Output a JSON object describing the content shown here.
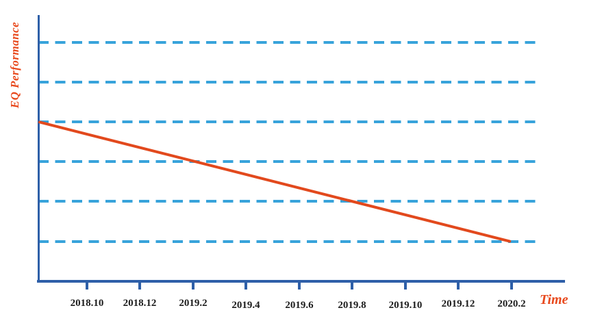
{
  "chart_data": {
    "type": "line",
    "title": "",
    "xlabel": "Time",
    "ylabel": "EQ Performance",
    "categories": [
      "2018.10",
      "2018.12",
      "2019.2",
      "2019.4",
      "2019.6",
      "2019.8",
      "2019.10",
      "2019.12",
      "2020.2"
    ],
    "y_axis": {
      "numeric_labels_visible": false,
      "gridline_count": 6,
      "gridline_style": "dashed",
      "gridline_orientation": "horizontal"
    },
    "legend": "none",
    "series": [
      {
        "name": "EQ Performance",
        "shape": "single straight declining segment",
        "points": [
          {
            "x": "y-axis (left of 2018.10)",
            "y": "gridline 3 of 6 from top"
          },
          {
            "x": "2020.2",
            "y": "gridline 6 of 6 (bottom gridline)"
          }
        ]
      }
    ],
    "colors": {
      "axis": "#2E5FA8",
      "gridline": "#38A3DB",
      "line": "#E2491D",
      "axis_label": "#E8491D",
      "tick_label": "#1C1C1C",
      "background": "#FFFFFF"
    }
  }
}
